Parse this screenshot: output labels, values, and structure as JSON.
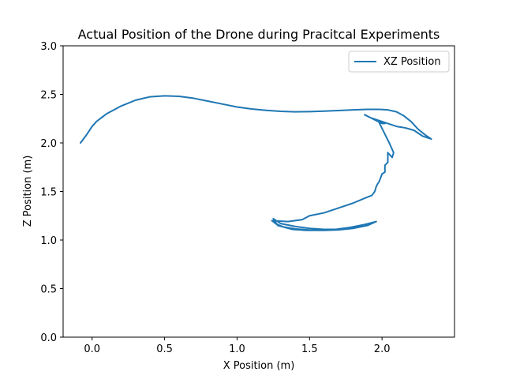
{
  "chart_data": {
    "type": "line",
    "title": "Actual Position of the Drone during Pracitcal Experiments",
    "xlabel": "X Position (m)",
    "ylabel": "Z Position (m)",
    "xlim": [
      -0.2,
      2.5
    ],
    "ylim": [
      0.0,
      3.0
    ],
    "xticks": [
      0.0,
      0.5,
      1.0,
      1.5,
      2.0
    ],
    "yticks": [
      0.0,
      0.5,
      1.0,
      1.5,
      2.0,
      2.5,
      3.0
    ],
    "xtick_labels": [
      "0.0",
      "0.5",
      "1.0",
      "1.5",
      "2.0"
    ],
    "ytick_labels": [
      "0.0",
      "0.5",
      "1.0",
      "1.5",
      "2.0",
      "2.5",
      "3.0"
    ],
    "grid": false,
    "legend_position": "top-right",
    "series": [
      {
        "name": "XZ Position",
        "color": "#1f77b4",
        "x": [
          -0.08,
          -0.04,
          0.0,
          0.03,
          0.1,
          0.2,
          0.3,
          0.4,
          0.5,
          0.6,
          0.7,
          0.8,
          0.9,
          1.0,
          1.1,
          1.2,
          1.3,
          1.4,
          1.5,
          1.6,
          1.7,
          1.8,
          1.9,
          1.98,
          2.04,
          2.1,
          2.15,
          2.2,
          2.25,
          2.3,
          2.34,
          2.28,
          2.22,
          2.16,
          2.1,
          2.04,
          1.98,
          1.92,
          1.88,
          1.92,
          1.96,
          2.0,
          2.02,
          1.98,
          2.02,
          2.05,
          2.08,
          2.07,
          2.04,
          2.04,
          2.02,
          2.02,
          2.0,
          1.98,
          1.97,
          1.96,
          1.95,
          1.93,
          1.88,
          1.8,
          1.7,
          1.6,
          1.5,
          1.45,
          1.35,
          1.24,
          1.27,
          1.32,
          1.4,
          1.5,
          1.6,
          1.7,
          1.8,
          1.9,
          1.96,
          1.88,
          1.78,
          1.68,
          1.58,
          1.48,
          1.38,
          1.28,
          1.25,
          1.3,
          1.4,
          1.5,
          1.6,
          1.7,
          1.8,
          1.9,
          1.94
        ],
        "y": [
          2.0,
          2.08,
          2.17,
          2.22,
          2.3,
          2.38,
          2.44,
          2.475,
          2.485,
          2.48,
          2.46,
          2.43,
          2.4,
          2.37,
          2.35,
          2.335,
          2.325,
          2.32,
          2.322,
          2.327,
          2.333,
          2.34,
          2.345,
          2.345,
          2.34,
          2.32,
          2.28,
          2.22,
          2.14,
          2.08,
          2.04,
          2.07,
          2.13,
          2.155,
          2.17,
          2.2,
          2.23,
          2.26,
          2.29,
          2.26,
          2.23,
          2.2,
          2.2,
          2.21,
          2.09,
          2.0,
          1.9,
          1.85,
          1.9,
          1.8,
          1.77,
          1.7,
          1.68,
          1.6,
          1.58,
          1.55,
          1.5,
          1.46,
          1.43,
          1.38,
          1.33,
          1.28,
          1.25,
          1.21,
          1.19,
          1.2,
          1.165,
          1.135,
          1.115,
          1.103,
          1.1,
          1.105,
          1.12,
          1.15,
          1.19,
          1.16,
          1.13,
          1.11,
          1.1,
          1.1,
          1.11,
          1.15,
          1.22,
          1.17,
          1.14,
          1.12,
          1.11,
          1.11,
          1.13,
          1.16,
          1.18
        ]
      }
    ]
  }
}
